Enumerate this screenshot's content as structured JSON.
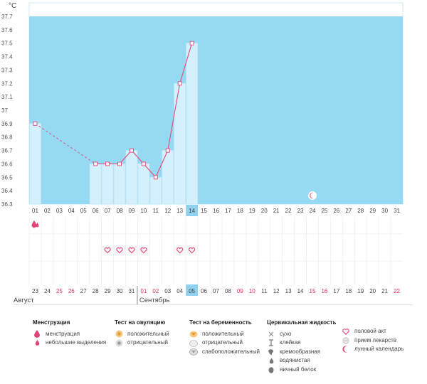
{
  "y_unit": "°C",
  "chart_data": {
    "type": "bar",
    "ylim": [
      36.3,
      37.7
    ],
    "y_ticks": [
      "37.7",
      "37.6",
      "37.5",
      "37.4",
      "37.3",
      "37.2",
      "37.1",
      "37",
      "36.9",
      "36.8",
      "36.7",
      "36.6",
      "36.5",
      "36.4",
      "36.3"
    ],
    "categories": [
      "01",
      "02",
      "03",
      "04",
      "05",
      "06",
      "07",
      "08",
      "09",
      "10",
      "11",
      "12",
      "13",
      "14",
      "15",
      "16",
      "17",
      "18",
      "19",
      "20",
      "21",
      "22",
      "23",
      "24",
      "25",
      "26",
      "27",
      "28",
      "29",
      "30",
      "31"
    ],
    "values": [
      36.9,
      null,
      null,
      null,
      null,
      36.6,
      36.6,
      36.6,
      36.7,
      36.6,
      36.5,
      36.7,
      37.2,
      37.5,
      null,
      null,
      null,
      null,
      null,
      null,
      null,
      null,
      null,
      null,
      null,
      null,
      null,
      null,
      null,
      null,
      null
    ],
    "dashed_gap": [
      1,
      6
    ],
    "today_index": 13,
    "colors": {
      "band": "#95d9f2",
      "bar": "#d4f0fc",
      "bar_border": "#bfe6f7",
      "line": "#e05580",
      "today": "#8ed2ef"
    }
  },
  "calendar": {
    "dates": [
      "23",
      "24",
      "25",
      "26",
      "27",
      "28",
      "29",
      "30",
      "31",
      "01",
      "02",
      "03",
      "04",
      "05",
      "06",
      "07",
      "08",
      "09",
      "10",
      "11",
      "12",
      "13",
      "14",
      "15",
      "16",
      "17",
      "18",
      "19",
      "20",
      "21",
      "22"
    ],
    "red_dates": [
      2,
      3,
      9,
      10,
      17,
      18,
      23,
      24,
      30
    ],
    "today_index": 13,
    "month_start_index": 9,
    "month_labels": [
      "Август",
      "Сентябрь"
    ],
    "menstruation_days": [
      0
    ],
    "intercourse_days": [
      6,
      7,
      8,
      9,
      12,
      13
    ],
    "lunar_day": 23
  },
  "legend": {
    "menstruation": {
      "title": "Менструация",
      "items": [
        "менструация",
        "небольшие выделения"
      ]
    },
    "ovulation": {
      "title": "Тест на овуляцию",
      "items": [
        "положительный",
        "отрицательный"
      ]
    },
    "pregnancy": {
      "title": "Тест на беременность",
      "items": [
        "положительный",
        "отрицательный",
        "слабоположительный"
      ]
    },
    "cervical": {
      "title": "Цервикальная жидкость",
      "items": [
        "сухо",
        "клейкая",
        "кремообразная",
        "водянистая",
        "яичный белок"
      ]
    },
    "other": {
      "items": [
        "половой акт",
        "прием лекарств",
        "лунный календарь"
      ]
    },
    "icons": [
      "drop-large-icon",
      "drop-small-icon",
      "ovulation-positive-icon",
      "ovulation-negative-icon",
      "pregnancy-positive-icon",
      "pregnancy-negative-icon",
      "pregnancy-weak-icon",
      "dry-cross-icon",
      "sticky-icon",
      "creamy-icon",
      "watery-icon",
      "eggwhite-icon",
      "heart-icon",
      "pill-icon",
      "moon-icon"
    ]
  }
}
